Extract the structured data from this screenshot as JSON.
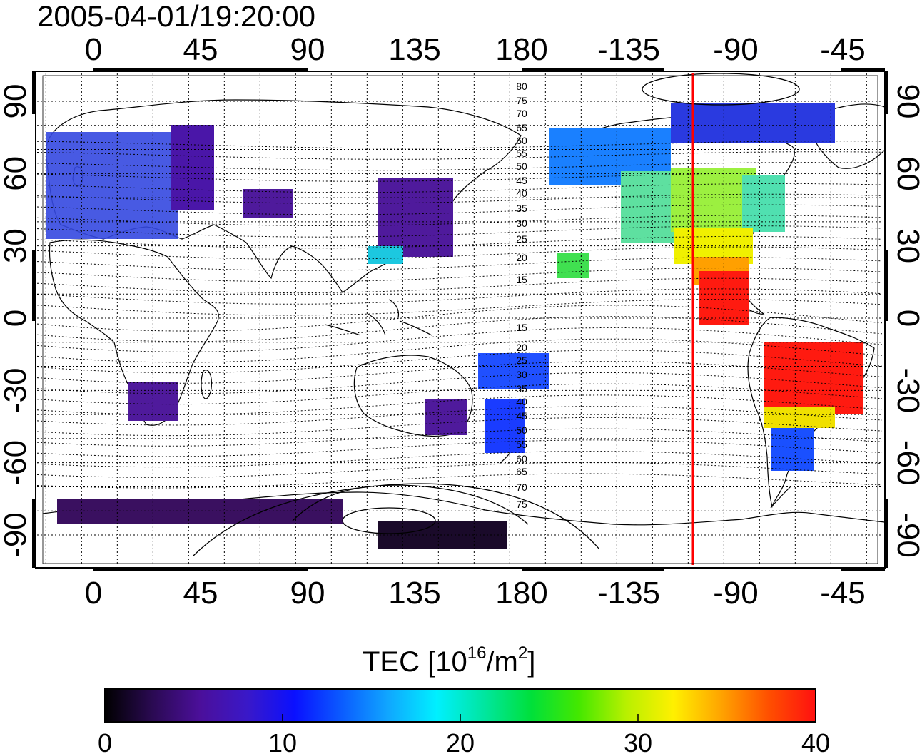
{
  "title": "2005-04-01/19:20:00",
  "colorbar": {
    "label_prefix": "TEC  [10",
    "label_exp1": "16",
    "label_mid": "/m",
    "label_exp2": "2",
    "label_suffix": "]",
    "ticks": [
      "0",
      "10",
      "20",
      "30",
      "40"
    ],
    "range": [
      0,
      40
    ],
    "stops": [
      "#000000",
      "#2a0a52",
      "#4b0f9a",
      "#3a18c8",
      "#0a10ff",
      "#0b5cff",
      "#10a8ff",
      "#00f0ff",
      "#00e6a0",
      "#00e03a",
      "#44e800",
      "#b8f000",
      "#fff000",
      "#ffa400",
      "#ff5000",
      "#ff1010"
    ]
  },
  "x_axis": {
    "top_ticks": [
      "0",
      "45",
      "90",
      "135",
      "180",
      "-135",
      "-90",
      "-45"
    ],
    "bottom_ticks": [
      "0",
      "45",
      "90",
      "135",
      "180",
      "-135",
      "-90",
      "-45"
    ],
    "lon_range": [
      -25,
      335
    ]
  },
  "y_axis": {
    "left_ticks": [
      "90",
      "60",
      "30",
      "0",
      "-30",
      "-60",
      "-90"
    ],
    "right_ticks": [
      "90",
      "60",
      "30",
      "0",
      "-30",
      "-60",
      "-90"
    ],
    "lat_range": [
      -90,
      90
    ]
  },
  "magnetic_latitude_labels": {
    "north": [
      "80",
      "75",
      "70",
      "65",
      "60",
      "55",
      "50",
      "45",
      "40",
      "35",
      "30",
      "25",
      "20",
      "15"
    ],
    "south": [
      "15",
      "20",
      "25",
      "30",
      "35",
      "40",
      "45",
      "50",
      "55",
      "60",
      "65",
      "70",
      "75"
    ]
  },
  "terminator_longitude": -108
}
